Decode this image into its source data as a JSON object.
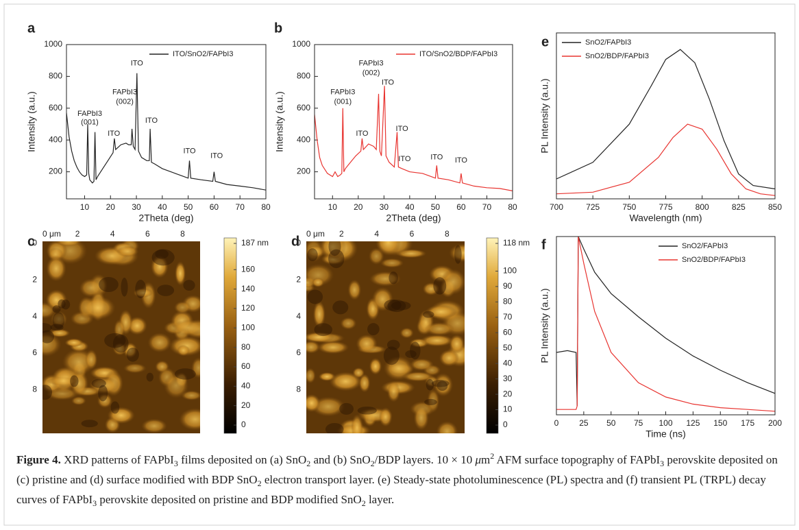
{
  "chart_data": [
    {
      "type": "line",
      "label": "a",
      "xlabel": "2Theta (deg)",
      "ylabel": "Intensity (a.u.)",
      "xlim": [
        3,
        80
      ],
      "xticks": [
        10,
        20,
        30,
        40,
        50,
        60,
        70,
        80
      ],
      "ylim": [
        30,
        1000
      ],
      "yticks": [
        200,
        400,
        600,
        800,
        1000
      ],
      "legend": "upper right",
      "series": [
        {
          "name": "ITO/SnO2/FAPbI3",
          "color": "#222222",
          "x": [
            3,
            4,
            5,
            6,
            7,
            8,
            9,
            10,
            10.8,
            11.2,
            11.6,
            12,
            13,
            13.6,
            14,
            14.4,
            15,
            17,
            19,
            21,
            21.5,
            22,
            24,
            26,
            27,
            28,
            28.3,
            28.8,
            29.5,
            30.2,
            30.8,
            32,
            34,
            35,
            35.3,
            35.8,
            37,
            40,
            45,
            50,
            50.5,
            51,
            55,
            59.5,
            60,
            60.5,
            65,
            70,
            75,
            80
          ],
          "values": [
            570,
            420,
            330,
            270,
            230,
            200,
            180,
            170,
            180,
            500,
            190,
            150,
            130,
            140,
            450,
            150,
            170,
            220,
            270,
            320,
            410,
            340,
            370,
            380,
            370,
            370,
            470,
            360,
            340,
            820,
            330,
            290,
            270,
            270,
            470,
            260,
            250,
            220,
            190,
            160,
            270,
            160,
            150,
            140,
            200,
            140,
            120,
            110,
            100,
            85
          ]
        }
      ],
      "annotations": [
        {
          "text": "FAPbI3",
          "x": 12,
          "y": 565
        },
        {
          "text": "(001)",
          "x": 12,
          "y": 510
        },
        {
          "text": "ITO",
          "x": 21.3,
          "y": 440
        },
        {
          "text": "FAPbI3",
          "x": 25.5,
          "y": 700
        },
        {
          "text": "(002)",
          "x": 25.5,
          "y": 640
        },
        {
          "text": "ITO",
          "x": 30.2,
          "y": 880
        },
        {
          "text": "ITO",
          "x": 35.8,
          "y": 520
        },
        {
          "text": "ITO",
          "x": 50.5,
          "y": 330
        },
        {
          "text": "ITO",
          "x": 61,
          "y": 300
        }
      ]
    },
    {
      "type": "line",
      "label": "b",
      "xlabel": "2Theta (deg)",
      "ylabel": "Intensity (a.u.)",
      "xlim": [
        3,
        80
      ],
      "xticks": [
        10,
        20,
        30,
        40,
        50,
        60,
        70,
        80
      ],
      "ylim": [
        30,
        1000
      ],
      "yticks": [
        200,
        400,
        600,
        800,
        1000
      ],
      "legend": "upper right",
      "series": [
        {
          "name": "ITO/SnO2/BDP/FAPbI3",
          "color": "#e8332f",
          "x": [
            3,
            4,
            5,
            6,
            8,
            10,
            11,
            12,
            13,
            13.6,
            14,
            14.4,
            15,
            17,
            19,
            21,
            21.5,
            22,
            24,
            26,
            27,
            27.9,
            28.4,
            29,
            30.2,
            30.8,
            32,
            34,
            35.1,
            35.6,
            37,
            40,
            45,
            50,
            50.5,
            51,
            55,
            59.5,
            60,
            60.5,
            65,
            70,
            75,
            80
          ],
          "values": [
            560,
            400,
            290,
            240,
            190,
            170,
            200,
            170,
            180,
            190,
            600,
            200,
            220,
            260,
            300,
            330,
            410,
            340,
            375,
            360,
            340,
            690,
            330,
            300,
            740,
            300,
            260,
            230,
            450,
            230,
            220,
            200,
            190,
            160,
            240,
            160,
            150,
            130,
            190,
            130,
            110,
            100,
            95,
            80
          ]
        }
      ],
      "annotations": [
        {
          "text": "FAPbI3",
          "x": 14,
          "y": 700
        },
        {
          "text": "(001)",
          "x": 14,
          "y": 640
        },
        {
          "text": "ITO",
          "x": 21.5,
          "y": 440
        },
        {
          "text": "FAPbI3",
          "x": 25,
          "y": 880
        },
        {
          "text": "(002)",
          "x": 25,
          "y": 820
        },
        {
          "text": "ITO",
          "x": 31.5,
          "y": 760
        },
        {
          "text": "ITO",
          "x": 37,
          "y": 470
        },
        {
          "text": "ITO",
          "x": 38,
          "y": 280
        },
        {
          "text": "ITO",
          "x": 50.5,
          "y": 290
        },
        {
          "text": "ITO",
          "x": 60,
          "y": 270
        }
      ]
    },
    {
      "type": "line",
      "label": "e",
      "xlabel": "Wavelength (nm)",
      "ylabel": "PL Intensity (a.u.)",
      "xlim": [
        700,
        850
      ],
      "xticks": [
        700,
        725,
        750,
        775,
        800,
        825,
        850
      ],
      "ylim": [
        0,
        100
      ],
      "legend": "upper left",
      "series": [
        {
          "name": "SnO2/FAPbI3",
          "color": "#222222",
          "x": [
            700,
            725,
            750,
            765,
            775,
            785,
            795,
            805,
            815,
            825,
            835,
            850
          ],
          "values": [
            12,
            22,
            45,
            68,
            84,
            90,
            82,
            60,
            35,
            15,
            8,
            6
          ]
        },
        {
          "name": "SnO2/BDP/FAPbI3",
          "color": "#e8332f",
          "x": [
            700,
            725,
            750,
            770,
            780,
            790,
            800,
            810,
            820,
            830,
            840,
            850
          ],
          "values": [
            3,
            4,
            10,
            25,
            37,
            45,
            42,
            30,
            15,
            6,
            3,
            2
          ]
        }
      ]
    },
    {
      "type": "line",
      "label": "f",
      "xlabel": "Time (ns)",
      "ylabel": "PL Intensity (a.u.)",
      "xlim": [
        0,
        200
      ],
      "xticks": [
        0,
        25,
        50,
        75,
        100,
        125,
        150,
        175,
        200
      ],
      "ylim": [
        0,
        100
      ],
      "legend": "upper right",
      "series": [
        {
          "name": "SnO2/FAPbI3",
          "color": "#222222",
          "x": [
            0,
            10,
            18,
            19,
            20,
            25,
            35,
            50,
            75,
            100,
            125,
            150,
            175,
            200
          ],
          "values": [
            35,
            36,
            35,
            5,
            100,
            93,
            80,
            68,
            55,
            43,
            33,
            25,
            18,
            12
          ]
        },
        {
          "name": "SnO2/BDP/FAPbI3",
          "color": "#e8332f",
          "x": [
            0,
            18,
            19,
            20,
            25,
            35,
            50,
            75,
            100,
            125,
            150,
            175,
            200
          ],
          "values": [
            3,
            3,
            5,
            100,
            85,
            58,
            35,
            18,
            10,
            6,
            4,
            3,
            2
          ]
        }
      ]
    }
  ],
  "afm": [
    {
      "label": "c",
      "xlim": [
        0,
        9
      ],
      "ylim": [
        0,
        10.5
      ],
      "xticks": [
        {
          "value": 0,
          "label": "0 μm"
        },
        2,
        4,
        6,
        8
      ],
      "yticks": [
        0,
        2,
        4,
        6,
        8
      ],
      "clim": [
        0,
        187
      ],
      "cticks": [
        {
          "value": 187,
          "label": "187 nm"
        },
        160,
        140,
        120,
        100,
        80,
        60,
        40,
        20,
        0
      ]
    },
    {
      "label": "d",
      "xlim": [
        0,
        9
      ],
      "ylim": [
        0,
        10.5
      ],
      "xticks": [
        {
          "value": 0,
          "label": "0 μm"
        },
        2,
        4,
        6,
        8
      ],
      "yticks": [
        0,
        2,
        4,
        6,
        8
      ],
      "clim": [
        0,
        118
      ],
      "cticks": [
        {
          "value": 118,
          "label": "118 nm"
        },
        100,
        90,
        80,
        70,
        60,
        50,
        40,
        30,
        20,
        10,
        0
      ]
    }
  ],
  "caption": {
    "parts": [
      "Figure 4.",
      " XRD patterns of FAPbI",
      "3",
      " films deposited on (a) SnO",
      "2",
      " and (b) SnO",
      "2",
      "/BDP layers. 10 × 10 ",
      "μ",
      "m",
      "2",
      " AFM surface topography of FAPbI",
      "3",
      " perovskite deposited on (c) pristine and (d) surface modified with BDP SnO",
      "2",
      " electron transport layer. (e) Steady-state photoluminescence (PL) spectra and (f) transient PL (TRPL) decay curves of FAPbI",
      "3",
      " perovskite deposited on pristine and BDP modified SnO",
      "2",
      " layer."
    ]
  }
}
